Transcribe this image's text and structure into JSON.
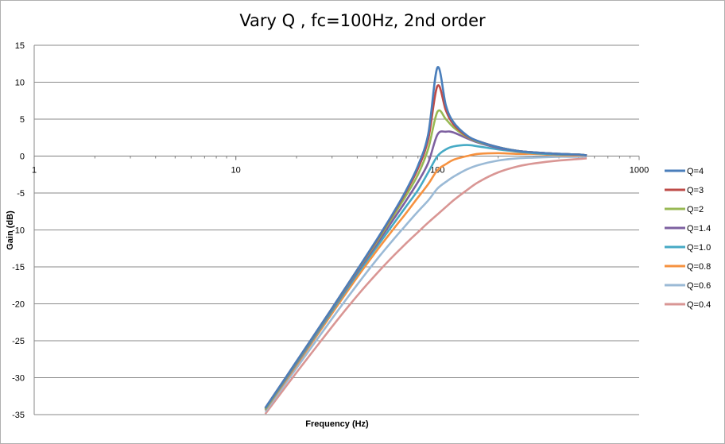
{
  "chart_data": {
    "type": "line",
    "title": "Vary Q , fc=100Hz, 2nd order",
    "xlabel": "Frequency (Hz)",
    "ylabel": "Gain (dB)",
    "xscale": "log",
    "xlim": [
      1,
      1000
    ],
    "ylim": [
      -35,
      15
    ],
    "x_ticks": [
      "1",
      "10",
      "100",
      "1000"
    ],
    "y_ticks": [
      "15",
      "10",
      "5",
      "0",
      "-5",
      "-10",
      "-15",
      "-20",
      "-25",
      "-30",
      "-35"
    ],
    "grid": "horizontal",
    "legend_position": "right",
    "fc": 100,
    "x": [
      14,
      20,
      30,
      40,
      50,
      60,
      70,
      80,
      90,
      100,
      110,
      120,
      140,
      160,
      200,
      250,
      300,
      400,
      500,
      550
    ],
    "series": [
      {
        "name": "Q=4",
        "color": "#4a7ebb",
        "values": [
          -34.1,
          -27.8,
          -20.6,
          -15.4,
          -11.3,
          -7.8,
          -4.6,
          -1.3,
          3.0,
          12.0,
          6.9,
          4.6,
          2.8,
          2.0,
          1.2,
          0.7,
          0.5,
          0.3,
          0.2,
          0.1
        ]
      },
      {
        "name": "Q=3",
        "color": "#be4b48",
        "values": [
          -34.1,
          -27.8,
          -20.6,
          -15.4,
          -11.4,
          -7.9,
          -4.8,
          -1.7,
          2.3,
          9.5,
          6.2,
          4.3,
          2.7,
          2.0,
          1.2,
          0.7,
          0.5,
          0.3,
          0.2,
          0.1
        ]
      },
      {
        "name": "Q=2",
        "color": "#98b954",
        "values": [
          -34.2,
          -27.9,
          -20.7,
          -15.5,
          -11.6,
          -8.2,
          -5.3,
          -2.5,
          1.0,
          6.0,
          5.0,
          3.9,
          2.6,
          1.9,
          1.2,
          0.7,
          0.5,
          0.3,
          0.2,
          0.1
        ]
      },
      {
        "name": "Q=1.4",
        "color": "#7d60a0",
        "values": [
          -34.2,
          -28.0,
          -20.8,
          -15.7,
          -11.9,
          -8.7,
          -6.0,
          -3.5,
          -0.9,
          2.9,
          3.3,
          3.2,
          2.4,
          1.8,
          1.1,
          0.7,
          0.5,
          0.3,
          0.2,
          0.1
        ]
      },
      {
        "name": "Q=1.0",
        "color": "#46aac5",
        "values": [
          -34.3,
          -28.1,
          -21.0,
          -16.0,
          -12.3,
          -9.3,
          -6.8,
          -4.6,
          -2.2,
          0.0,
          0.9,
          1.3,
          1.5,
          1.3,
          0.9,
          0.6,
          0.4,
          0.2,
          0.2,
          0.1
        ]
      },
      {
        "name": "Q=0.8",
        "color": "#f69240",
        "values": [
          -34.4,
          -28.3,
          -21.3,
          -16.4,
          -12.8,
          -10.0,
          -7.7,
          -5.6,
          -3.8,
          -1.9,
          -1.1,
          -0.5,
          0.0,
          0.3,
          0.4,
          0.3,
          0.3,
          0.1,
          0.1,
          0.1
        ]
      },
      {
        "name": "Q=0.6",
        "color": "#9bbad6",
        "values": [
          -34.6,
          -28.7,
          -22.0,
          -17.4,
          -14.0,
          -11.4,
          -9.3,
          -7.5,
          -6.0,
          -4.4,
          -3.5,
          -2.8,
          -1.8,
          -1.2,
          -0.6,
          -0.3,
          -0.2,
          -0.1,
          -0.1,
          0.0
        ]
      },
      {
        "name": "Q=0.4",
        "color": "#d99694",
        "values": [
          -34.9,
          -29.3,
          -23.1,
          -18.9,
          -15.9,
          -13.6,
          -11.8,
          -10.3,
          -9.0,
          -7.9,
          -6.9,
          -6.0,
          -4.6,
          -3.5,
          -2.2,
          -1.4,
          -1.0,
          -0.6,
          -0.4,
          -0.3
        ]
      }
    ]
  }
}
